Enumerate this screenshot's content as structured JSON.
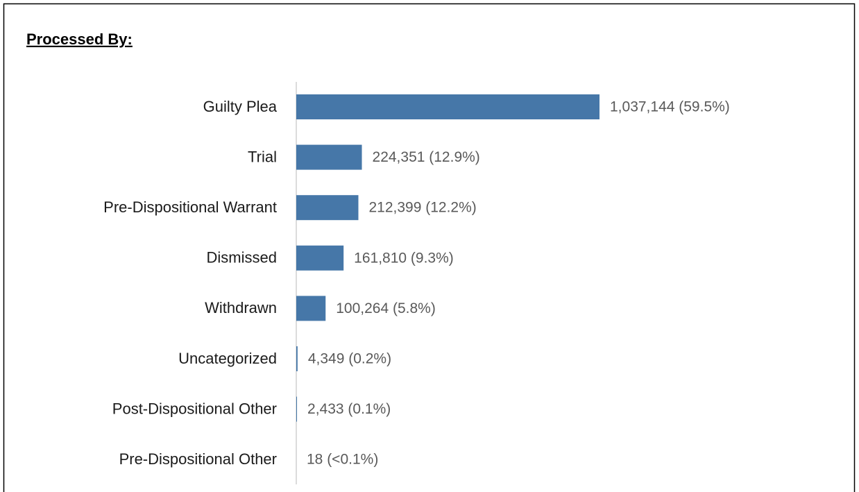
{
  "chart_data": {
    "type": "bar",
    "orientation": "horizontal",
    "title": "Processed By:",
    "categories": [
      "Guilty Plea",
      "Trial",
      "Pre-Dispositional Warrant",
      "Dismissed",
      "Withdrawn",
      "Uncategorized",
      "Post-Dispositional Other",
      "Pre-Dispositional Other"
    ],
    "values": [
      1037144,
      224351,
      212399,
      161810,
      100264,
      4349,
      2433,
      18
    ],
    "value_labels": [
      "1,037,144 (59.5%)",
      "224,351 (12.9%)",
      "212,399 (12.2%)",
      "161,810 (9.3%)",
      "100,264 (5.8%)",
      "4,349 (0.2%)",
      "2,433 (0.1%)",
      "18 (<0.1%)"
    ],
    "color": "#4677a8"
  }
}
